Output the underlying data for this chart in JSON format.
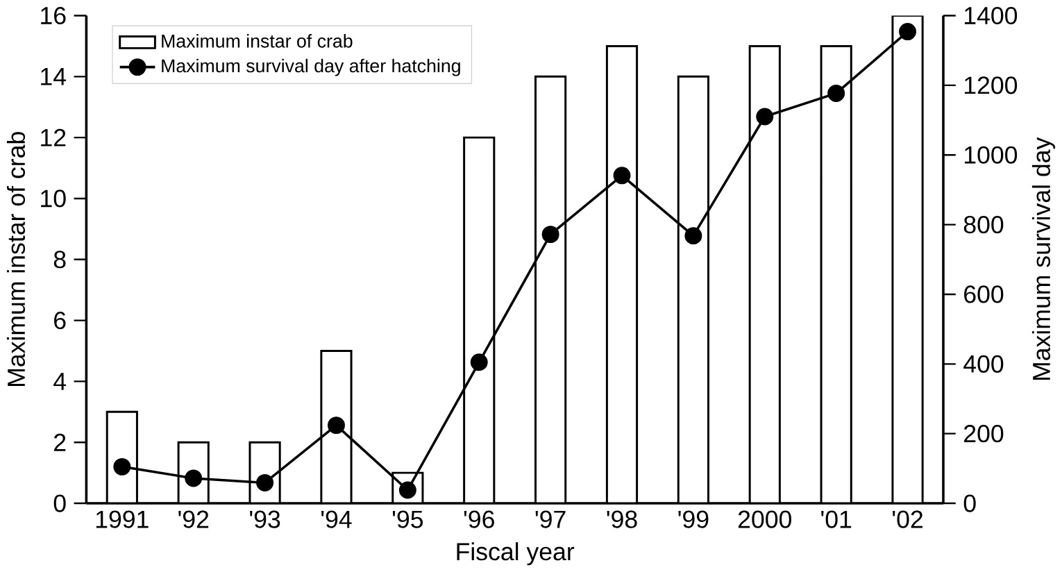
{
  "chart_data": {
    "type": "bar",
    "xlabel": "Fiscal year",
    "ylabel": "Maximum instar of crab",
    "y2label": "Maximum survival day",
    "categories": [
      "1991",
      "'92",
      "'93",
      "'94",
      "'95",
      "'96",
      "'97",
      "'98",
      "'99",
      "2000",
      "'01",
      "'02"
    ],
    "series": [
      {
        "name": "Maximum instar of crab",
        "color": "#ffffff",
        "values": [
          3,
          2,
          2,
          5,
          1,
          12,
          14,
          15,
          14,
          15,
          15,
          16
        ]
      },
      {
        "name": "Maximum survival day after hatching",
        "type": "line",
        "axis": "y2",
        "color": "#000000",
        "marker": "circle",
        "values": [
          105,
          72,
          59,
          224,
          38,
          405,
          772,
          941,
          768,
          1110,
          1177,
          1354
        ]
      }
    ],
    "ylim": [
      0,
      16
    ],
    "yticks": [
      0,
      2,
      4,
      6,
      8,
      10,
      12,
      14,
      16
    ],
    "y2lim": [
      0,
      1400
    ],
    "y2ticks": [
      0,
      200,
      400,
      600,
      800,
      1000,
      1200,
      1400
    ],
    "legend": "top left",
    "grid": false
  }
}
